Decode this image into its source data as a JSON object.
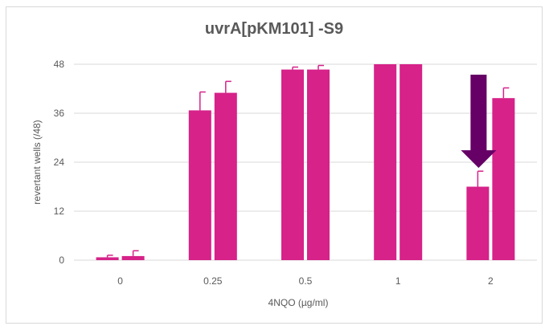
{
  "chart_data": {
    "type": "bar",
    "title": "uvrA[pKM101] -S9",
    "xlabel": "4NQO (µg/ml)",
    "ylabel": "revertant wells (/48)",
    "ylim": [
      0,
      48
    ],
    "yticks": [
      0,
      12,
      24,
      36,
      48
    ],
    "categories": [
      "0",
      "0.25",
      "0.5",
      "1",
      "2"
    ],
    "grid": true,
    "legend": "none",
    "series": [
      {
        "values": [
          0.7,
          36.7,
          46.7,
          48,
          18.0
        ],
        "errors": [
          0.5,
          4.5,
          0.6,
          0,
          3.8
        ]
      },
      {
        "values": [
          1.0,
          41.0,
          46.7,
          48,
          39.7
        ],
        "errors": [
          1.3,
          2.8,
          1.0,
          0,
          2.5
        ]
      }
    ],
    "annotations": [
      {
        "type": "arrow",
        "category": "2",
        "series": 0,
        "color": "#660066"
      }
    ],
    "colors": {
      "bar": "#d62289",
      "gridline": "#d9d9d9",
      "text": "#595959",
      "arrow": "#660066"
    }
  }
}
